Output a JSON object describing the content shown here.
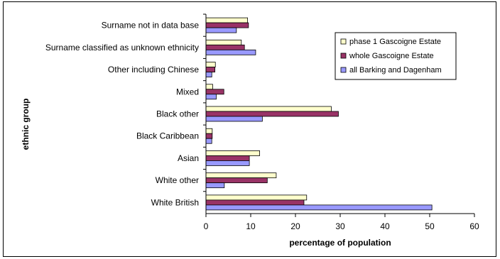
{
  "chart_data": {
    "type": "bar",
    "orientation": "horizontal",
    "xlabel": "percentage of population",
    "ylabel": "ethnic group",
    "xlim": [
      0,
      60
    ],
    "xticks": [
      0,
      10,
      20,
      30,
      40,
      50,
      60
    ],
    "grid": false,
    "legend_position": "top-right",
    "categories": [
      "White British",
      "White other",
      "Asian",
      "Black Caribbean",
      "Black other",
      "Mixed",
      "Other including Chinese",
      "Surname classified as unknown ethnicity",
      "Surname not in data base"
    ],
    "series": [
      {
        "name": "phase 1 Gascoigne Estate",
        "color": "#ffffcc",
        "values": [
          22.5,
          15.7,
          12.0,
          1.4,
          28.0,
          1.5,
          2.1,
          7.9,
          9.3
        ]
      },
      {
        "name": "whole Gascoigne Estate",
        "color": "#993366",
        "values": [
          21.9,
          13.7,
          9.7,
          1.4,
          29.6,
          4.0,
          2.0,
          8.6,
          9.5
        ]
      },
      {
        "name": "all Barking and Dagenham",
        "color": "#9999ff",
        "values": [
          50.5,
          4.1,
          9.7,
          1.3,
          12.6,
          2.3,
          1.3,
          11.1,
          6.8
        ]
      }
    ]
  }
}
